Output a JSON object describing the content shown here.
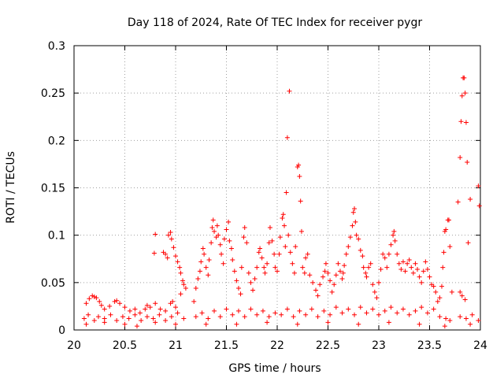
{
  "chart_data": {
    "type": "scatter",
    "title": "Day 118 of 2024, Rate Of TEC Index for receiver pygr",
    "xlabel": "GPS time / hours",
    "ylabel": "ROTI / TECUs",
    "xlim": [
      20,
      24
    ],
    "ylim": [
      0,
      0.3
    ],
    "grid": true,
    "x_ticks": [
      20,
      20.5,
      21,
      21.5,
      22,
      22.5,
      23,
      23.5,
      24
    ],
    "x_tick_labels": [
      "20",
      "20.5",
      "21",
      "21.5",
      "22",
      "22.5",
      "23",
      "23.5",
      "24"
    ],
    "y_ticks": [
      0,
      0.05,
      0.1,
      0.15,
      0.2,
      0.25,
      0.3
    ],
    "y_tick_labels": [
      "0",
      "0.05",
      "0.1",
      "0.15",
      "0.2",
      "0.25",
      "0.3"
    ],
    "marker": "+",
    "color": "#ff0000",
    "series": [
      {
        "name": "ROTI",
        "points": [
          [
            20.12,
            0.028
          ],
          [
            20.15,
            0.033
          ],
          [
            20.18,
            0.036
          ],
          [
            20.2,
            0.035
          ],
          [
            20.22,
            0.034
          ],
          [
            20.25,
            0.03
          ],
          [
            20.27,
            0.026
          ],
          [
            20.3,
            0.022
          ],
          [
            20.35,
            0.025
          ],
          [
            20.4,
            0.03
          ],
          [
            20.42,
            0.031
          ],
          [
            20.45,
            0.028
          ],
          [
            20.5,
            0.024
          ],
          [
            20.55,
            0.02
          ],
          [
            20.6,
            0.022
          ],
          [
            20.65,
            0.018
          ],
          [
            20.7,
            0.022
          ],
          [
            20.72,
            0.026
          ],
          [
            20.75,
            0.024
          ],
          [
            20.8,
            0.028
          ],
          [
            20.85,
            0.022
          ],
          [
            20.9,
            0.02
          ],
          [
            20.95,
            0.028
          ],
          [
            20.97,
            0.03
          ],
          [
            21.0,
            0.024
          ],
          [
            20.79,
            0.081
          ],
          [
            20.8,
            0.101
          ],
          [
            20.88,
            0.082
          ],
          [
            20.9,
            0.08
          ],
          [
            20.92,
            0.076
          ],
          [
            20.93,
            0.1
          ],
          [
            20.95,
            0.103
          ],
          [
            20.96,
            0.096
          ],
          [
            20.98,
            0.087
          ],
          [
            21.0,
            0.078
          ],
          [
            21.02,
            0.072
          ],
          [
            21.04,
            0.066
          ],
          [
            21.05,
            0.06
          ],
          [
            21.07,
            0.052
          ],
          [
            21.08,
            0.048
          ],
          [
            21.1,
            0.044
          ],
          [
            21.05,
            0.038
          ],
          [
            21.18,
            0.03
          ],
          [
            21.2,
            0.044
          ],
          [
            21.22,
            0.054
          ],
          [
            21.24,
            0.062
          ],
          [
            21.25,
            0.072
          ],
          [
            21.27,
            0.086
          ],
          [
            21.28,
            0.08
          ],
          [
            21.3,
            0.066
          ],
          [
            21.32,
            0.058
          ],
          [
            21.33,
            0.074
          ],
          [
            21.35,
            0.092
          ],
          [
            21.36,
            0.108
          ],
          [
            21.37,
            0.116
          ],
          [
            21.38,
            0.104
          ],
          [
            21.4,
            0.098
          ],
          [
            21.41,
            0.11
          ],
          [
            21.42,
            0.1
          ],
          [
            21.44,
            0.09
          ],
          [
            21.45,
            0.08
          ],
          [
            21.47,
            0.07
          ],
          [
            21.48,
            0.096
          ],
          [
            21.5,
            0.106
          ],
          [
            21.52,
            0.114
          ],
          [
            21.53,
            0.094
          ],
          [
            21.55,
            0.086
          ],
          [
            21.56,
            0.074
          ],
          [
            21.58,
            0.062
          ],
          [
            21.6,
            0.052
          ],
          [
            21.62,
            0.044
          ],
          [
            21.64,
            0.038
          ],
          [
            21.65,
            0.066
          ],
          [
            21.67,
            0.098
          ],
          [
            21.68,
            0.108
          ],
          [
            21.7,
            0.092
          ],
          [
            21.72,
            0.06
          ],
          [
            21.74,
            0.05
          ],
          [
            21.76,
            0.042
          ],
          [
            21.78,
            0.054
          ],
          [
            21.8,
            0.066
          ],
          [
            21.82,
            0.082
          ],
          [
            21.83,
            0.086
          ],
          [
            21.85,
            0.076
          ],
          [
            21.87,
            0.066
          ],
          [
            21.88,
            0.06
          ],
          [
            21.9,
            0.07
          ],
          [
            21.92,
            0.092
          ],
          [
            21.93,
            0.108
          ],
          [
            21.95,
            0.094
          ],
          [
            21.97,
            0.08
          ],
          [
            21.98,
            0.066
          ],
          [
            22.0,
            0.062
          ],
          [
            22.02,
            0.08
          ],
          [
            22.03,
            0.098
          ],
          [
            22.05,
            0.118
          ],
          [
            22.06,
            0.122
          ],
          [
            22.07,
            0.11
          ],
          [
            22.08,
            0.088
          ],
          [
            22.09,
            0.145
          ],
          [
            22.1,
            0.203
          ],
          [
            22.12,
            0.252
          ],
          [
            22.11,
            0.1
          ],
          [
            22.13,
            0.082
          ],
          [
            22.15,
            0.07
          ],
          [
            22.17,
            0.06
          ],
          [
            22.18,
            0.088
          ],
          [
            22.2,
            0.172
          ],
          [
            22.21,
            0.174
          ],
          [
            22.22,
            0.162
          ],
          [
            22.23,
            0.136
          ],
          [
            22.24,
            0.104
          ],
          [
            22.25,
            0.066
          ],
          [
            22.27,
            0.06
          ],
          [
            22.28,
            0.076
          ],
          [
            22.3,
            0.08
          ],
          [
            22.32,
            0.058
          ],
          [
            22.35,
            0.05
          ],
          [
            22.38,
            0.042
          ],
          [
            22.4,
            0.036
          ],
          [
            22.42,
            0.048
          ],
          [
            22.45,
            0.056
          ],
          [
            22.47,
            0.062
          ],
          [
            22.48,
            0.07
          ],
          [
            22.5,
            0.06
          ],
          [
            22.52,
            0.052
          ],
          [
            22.54,
            0.04
          ],
          [
            22.56,
            0.048
          ],
          [
            22.58,
            0.058
          ],
          [
            22.6,
            0.07
          ],
          [
            22.62,
            0.062
          ],
          [
            22.64,
            0.054
          ],
          [
            22.65,
            0.06
          ],
          [
            22.66,
            0.068
          ],
          [
            22.68,
            0.08
          ],
          [
            22.7,
            0.088
          ],
          [
            22.72,
            0.098
          ],
          [
            22.74,
            0.11
          ],
          [
            22.75,
            0.124
          ],
          [
            22.76,
            0.128
          ],
          [
            22.77,
            0.114
          ],
          [
            22.78,
            0.1
          ],
          [
            22.8,
            0.096
          ],
          [
            22.82,
            0.084
          ],
          [
            22.84,
            0.078
          ],
          [
            22.85,
            0.066
          ],
          [
            22.87,
            0.06
          ],
          [
            22.88,
            0.056
          ],
          [
            22.9,
            0.066
          ],
          [
            22.92,
            0.07
          ],
          [
            22.94,
            0.048
          ],
          [
            22.96,
            0.04
          ],
          [
            22.98,
            0.034
          ],
          [
            23.0,
            0.05
          ],
          [
            23.02,
            0.064
          ],
          [
            23.04,
            0.08
          ],
          [
            23.06,
            0.076
          ],
          [
            23.08,
            0.066
          ],
          [
            23.1,
            0.08
          ],
          [
            23.12,
            0.09
          ],
          [
            23.14,
            0.1
          ],
          [
            23.15,
            0.104
          ],
          [
            23.16,
            0.094
          ],
          [
            23.18,
            0.08
          ],
          [
            23.2,
            0.07
          ],
          [
            23.22,
            0.064
          ],
          [
            23.24,
            0.072
          ],
          [
            23.26,
            0.062
          ],
          [
            23.28,
            0.07
          ],
          [
            23.3,
            0.074
          ],
          [
            23.32,
            0.066
          ],
          [
            23.34,
            0.06
          ],
          [
            23.36,
            0.07
          ],
          [
            23.38,
            0.064
          ],
          [
            23.4,
            0.056
          ],
          [
            23.42,
            0.05
          ],
          [
            23.44,
            0.062
          ],
          [
            23.46,
            0.072
          ],
          [
            23.48,
            0.064
          ],
          [
            23.5,
            0.056
          ],
          [
            23.52,
            0.048
          ],
          [
            23.54,
            0.046
          ],
          [
            23.56,
            0.04
          ],
          [
            23.58,
            0.03
          ],
          [
            23.6,
            0.034
          ],
          [
            23.62,
            0.046
          ],
          [
            23.63,
            0.066
          ],
          [
            23.64,
            0.082
          ],
          [
            23.65,
            0.104
          ],
          [
            23.66,
            0.106
          ],
          [
            23.68,
            0.116
          ],
          [
            23.69,
            0.116
          ],
          [
            23.7,
            0.088
          ],
          [
            23.72,
            0.04
          ],
          [
            23.78,
            0.135
          ],
          [
            23.8,
            0.182
          ],
          [
            23.81,
            0.22
          ],
          [
            23.82,
            0.247
          ],
          [
            23.83,
            0.266
          ],
          [
            23.84,
            0.266
          ],
          [
            23.85,
            0.25
          ],
          [
            23.86,
            0.219
          ],
          [
            23.87,
            0.177
          ],
          [
            23.88,
            0.092
          ],
          [
            23.9,
            0.138
          ],
          [
            23.98,
            0.152
          ],
          [
            23.99,
            0.131
          ],
          [
            23.8,
            0.04
          ],
          [
            23.82,
            0.036
          ],
          [
            23.85,
            0.032
          ],
          [
            20.1,
            0.012
          ],
          [
            20.14,
            0.016
          ],
          [
            20.2,
            0.01
          ],
          [
            20.24,
            0.014
          ],
          [
            20.3,
            0.012
          ],
          [
            20.36,
            0.016
          ],
          [
            20.42,
            0.01
          ],
          [
            20.48,
            0.014
          ],
          [
            20.54,
            0.012
          ],
          [
            20.6,
            0.016
          ],
          [
            20.66,
            0.01
          ],
          [
            20.72,
            0.014
          ],
          [
            20.78,
            0.012
          ],
          [
            20.84,
            0.016
          ],
          [
            20.9,
            0.01
          ],
          [
            20.96,
            0.014
          ],
          [
            21.02,
            0.018
          ],
          [
            21.08,
            0.012
          ],
          [
            21.2,
            0.014
          ],
          [
            21.26,
            0.018
          ],
          [
            21.32,
            0.012
          ],
          [
            21.38,
            0.02
          ],
          [
            21.44,
            0.014
          ],
          [
            21.5,
            0.022
          ],
          [
            21.56,
            0.016
          ],
          [
            21.62,
            0.02
          ],
          [
            21.68,
            0.014
          ],
          [
            21.74,
            0.022
          ],
          [
            21.8,
            0.016
          ],
          [
            21.86,
            0.02
          ],
          [
            21.92,
            0.014
          ],
          [
            21.98,
            0.018
          ],
          [
            22.04,
            0.016
          ],
          [
            22.1,
            0.022
          ],
          [
            22.16,
            0.014
          ],
          [
            22.22,
            0.02
          ],
          [
            22.28,
            0.016
          ],
          [
            22.34,
            0.022
          ],
          [
            22.4,
            0.014
          ],
          [
            22.46,
            0.02
          ],
          [
            22.52,
            0.016
          ],
          [
            22.58,
            0.024
          ],
          [
            22.64,
            0.018
          ],
          [
            22.7,
            0.022
          ],
          [
            22.76,
            0.016
          ],
          [
            22.82,
            0.024
          ],
          [
            22.88,
            0.018
          ],
          [
            22.94,
            0.022
          ],
          [
            23.0,
            0.016
          ],
          [
            23.06,
            0.02
          ],
          [
            23.12,
            0.024
          ],
          [
            23.18,
            0.018
          ],
          [
            23.24,
            0.022
          ],
          [
            23.3,
            0.016
          ],
          [
            23.36,
            0.02
          ],
          [
            23.42,
            0.024
          ],
          [
            23.48,
            0.018
          ],
          [
            23.54,
            0.022
          ],
          [
            23.6,
            0.014
          ],
          [
            23.66,
            0.012
          ],
          [
            23.7,
            0.01
          ],
          [
            23.8,
            0.014
          ],
          [
            23.86,
            0.012
          ],
          [
            23.92,
            0.016
          ],
          [
            23.98,
            0.01
          ],
          [
            20.12,
            0.006
          ],
          [
            20.3,
            0.008
          ],
          [
            20.5,
            0.006
          ],
          [
            20.62,
            0.004
          ],
          [
            20.8,
            0.008
          ],
          [
            21.0,
            0.006
          ],
          [
            21.3,
            0.006
          ],
          [
            21.6,
            0.006
          ],
          [
            21.9,
            0.008
          ],
          [
            22.2,
            0.006
          ],
          [
            22.5,
            0.008
          ],
          [
            22.8,
            0.006
          ],
          [
            23.1,
            0.008
          ],
          [
            23.4,
            0.006
          ],
          [
            23.65,
            0.004
          ],
          [
            23.9,
            0.006
          ]
        ]
      }
    ]
  }
}
